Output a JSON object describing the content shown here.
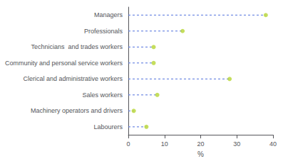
{
  "chart_data": {
    "type": "dot",
    "orientation": "horizontal",
    "categories": [
      "Managers",
      "Professionals",
      "Technicians  and trades workers",
      "Community and personal service workers",
      "Clerical and administrative workers",
      "Sales workers",
      "Machinery operators and drivers",
      "Labourers"
    ],
    "values": [
      38.0,
      15.0,
      7.0,
      7.0,
      28.0,
      8.0,
      1.5,
      5.0
    ],
    "xlabel": "%",
    "xlim": [
      0,
      40
    ],
    "xticks": [
      0,
      10,
      20,
      30,
      40
    ],
    "grid": false,
    "marker": "circle",
    "line_style": "dashed"
  }
}
